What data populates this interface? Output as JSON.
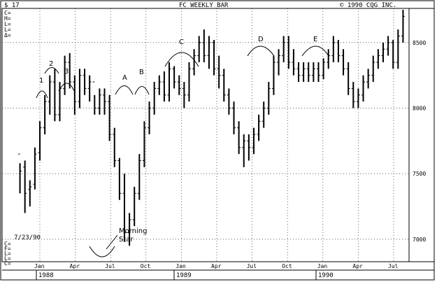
{
  "header": {
    "left": "$ 17",
    "center": "FC WEEKLY BAR",
    "right": "© 1990 CQG INC."
  },
  "ohlc_labels": [
    "C=",
    "H=",
    "L=",
    "L=",
    "Δ="
  ],
  "footer_ohlc_labels": [
    "C=",
    "F=",
    "L=",
    "L=",
    "C="
  ],
  "date_note": "7/23/90",
  "annotation": {
    "text_line1": "Morning",
    "text_line2": "Star"
  },
  "chart_data": {
    "type": "ohlc-bar",
    "title": "FC WEEKLY BAR",
    "source": "© 1990 CQG INC.",
    "xlabel": "",
    "ylabel": "",
    "ylim": [
      6850,
      8750
    ],
    "yticks": [
      7000,
      7500,
      8000,
      8500
    ],
    "ytick_labels": [
      "7000",
      "7500",
      "8000",
      "8500"
    ],
    "month_labels": [
      "Jan",
      "Apr",
      "Jul",
      "Oct",
      "Jan",
      "Apr",
      "Jul",
      "Oct",
      "Jan",
      "Apr",
      "Jul"
    ],
    "year_labels": [
      "1988",
      "1989",
      "1990"
    ],
    "grid": true,
    "bars": [
      [
        7650,
        7580,
        7350,
        7520
      ],
      [
        7550,
        7600,
        7200,
        7350
      ],
      [
        7380,
        7450,
        7250,
        7400
      ],
      [
        7420,
        7700,
        7380,
        7650
      ],
      [
        7660,
        7900,
        7600,
        7850
      ],
      [
        7850,
        8100,
        7800,
        8050
      ],
      [
        8050,
        8250,
        7950,
        8200
      ],
      [
        8200,
        8300,
        7900,
        7950
      ],
      [
        7950,
        8200,
        7900,
        8150
      ],
      [
        8150,
        8400,
        8100,
        8350
      ],
      [
        8350,
        8420,
        8150,
        8200
      ],
      [
        8200,
        8250,
        7950,
        8050
      ],
      [
        8050,
        8300,
        8000,
        8250
      ],
      [
        8250,
        8300,
        8100,
        8150
      ],
      [
        8150,
        8250,
        8050,
        8200
      ],
      [
        8200,
        8100,
        7950,
        8000
      ],
      [
        8000,
        8150,
        7950,
        8100
      ],
      [
        8100,
        8150,
        7950,
        8050
      ],
      [
        8050,
        8100,
        7750,
        7800
      ],
      [
        7800,
        7850,
        7550,
        7600
      ],
      [
        7600,
        7620,
        7300,
        7350
      ],
      [
        7350,
        7500,
        6980,
        7050
      ],
      [
        7050,
        7200,
        6950,
        7150
      ],
      [
        7150,
        7400,
        7100,
        7350
      ],
      [
        7350,
        7650,
        7300,
        7600
      ],
      [
        7600,
        7900,
        7550,
        7850
      ],
      [
        7850,
        8050,
        7800,
        8000
      ],
      [
        8000,
        8200,
        7950,
        8150
      ],
      [
        8150,
        8250,
        8100,
        8200
      ],
      [
        8200,
        8280,
        8050,
        8100
      ],
      [
        8100,
        8350,
        8050,
        8300
      ],
      [
        8300,
        8320,
        8150,
        8200
      ],
      [
        8200,
        8250,
        8100,
        8150
      ],
      [
        8150,
        8200,
        8000,
        8100
      ],
      [
        8100,
        8350,
        8050,
        8300
      ],
      [
        8300,
        8450,
        8250,
        8400
      ],
      [
        8400,
        8550,
        8350,
        8500
      ],
      [
        8500,
        8600,
        8350,
        8400
      ],
      [
        8400,
        8550,
        8300,
        8500
      ],
      [
        8500,
        8520,
        8250,
        8300
      ],
      [
        8300,
        8400,
        8150,
        8250
      ],
      [
        8250,
        8300,
        8050,
        8100
      ],
      [
        8100,
        8150,
        7950,
        8000
      ],
      [
        8000,
        8050,
        7800,
        7850
      ],
      [
        7850,
        7900,
        7650,
        7700
      ],
      [
        7700,
        7800,
        7550,
        7750
      ],
      [
        7750,
        7800,
        7600,
        7700
      ],
      [
        7700,
        7850,
        7650,
        7800
      ],
      [
        7800,
        7950,
        7750,
        7900
      ],
      [
        7900,
        8050,
        7850,
        8000
      ],
      [
        8000,
        8200,
        7950,
        8150
      ],
      [
        8150,
        8400,
        8100,
        8350
      ],
      [
        8350,
        8450,
        8250,
        8400
      ],
      [
        8400,
        8550,
        8350,
        8500
      ],
      [
        8500,
        8550,
        8300,
        8350
      ],
      [
        8350,
        8450,
        8250,
        8300
      ],
      [
        8300,
        8350,
        8200,
        8250
      ],
      [
        8250,
        8350,
        8200,
        8300
      ],
      [
        8300,
        8350,
        8200,
        8250
      ],
      [
        8250,
        8350,
        8200,
        8300
      ],
      [
        8300,
        8350,
        8200,
        8250
      ],
      [
        8250,
        8380,
        8220,
        8350
      ],
      [
        8350,
        8450,
        8300,
        8400
      ],
      [
        8400,
        8550,
        8350,
        8500
      ],
      [
        8500,
        8520,
        8350,
        8400
      ],
      [
        8400,
        8450,
        8250,
        8300
      ],
      [
        8300,
        8350,
        8100,
        8150
      ],
      [
        8150,
        8200,
        8000,
        8050
      ],
      [
        8050,
        8150,
        8000,
        8100
      ],
      [
        8100,
        8250,
        8050,
        8200
      ],
      [
        8200,
        8300,
        8150,
        8250
      ],
      [
        8250,
        8400,
        8200,
        8350
      ],
      [
        8350,
        8450,
        8300,
        8400
      ],
      [
        8400,
        8500,
        8350,
        8450
      ],
      [
        8450,
        8550,
        8400,
        8500
      ],
      [
        8500,
        8520,
        8300,
        8350
      ],
      [
        8350,
        8600,
        8300,
        8550
      ],
      [
        8550,
        8750,
        8500,
        8700
      ]
    ]
  }
}
